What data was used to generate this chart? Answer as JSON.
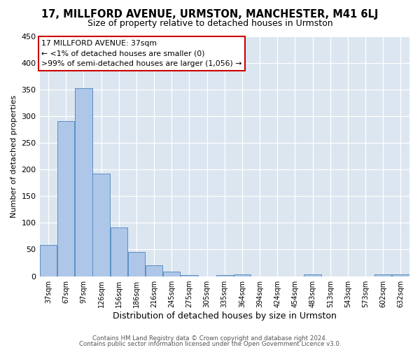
{
  "title": "17, MILLFORD AVENUE, URMSTON, MANCHESTER, M41 6LJ",
  "subtitle": "Size of property relative to detached houses in Urmston",
  "xlabel": "Distribution of detached houses by size in Urmston",
  "ylabel": "Number of detached properties",
  "footer_lines": [
    "Contains HM Land Registry data © Crown copyright and database right 2024.",
    "Contains public sector information licensed under the Open Government Licence v3.0."
  ],
  "bin_labels": [
    "37sqm",
    "67sqm",
    "97sqm",
    "126sqm",
    "156sqm",
    "186sqm",
    "216sqm",
    "245sqm",
    "275sqm",
    "305sqm",
    "335sqm",
    "364sqm",
    "394sqm",
    "424sqm",
    "454sqm",
    "483sqm",
    "513sqm",
    "543sqm",
    "573sqm",
    "602sqm",
    "632sqm"
  ],
  "bar_values": [
    58,
    290,
    352,
    192,
    91,
    46,
    21,
    9,
    2,
    0,
    2,
    4,
    0,
    0,
    0,
    4,
    0,
    0,
    0,
    3,
    4
  ],
  "bar_color": "#aec6e8",
  "bar_edge_color": "#5a8fc2",
  "annotation_title": "17 MILLFORD AVENUE: 37sqm",
  "annotation_line1": "← <1% of detached houses are smaller (0)",
  "annotation_line2": ">99% of semi-detached houses are larger (1,056) →",
  "annotation_box_facecolor": "#ffffff",
  "annotation_box_edgecolor": "#cc0000",
  "ylim": [
    0,
    450
  ],
  "yticks": [
    0,
    50,
    100,
    150,
    200,
    250,
    300,
    350,
    400,
    450
  ],
  "figure_bg": "#ffffff",
  "plot_bg": "#dce6f0",
  "grid_color": "#ffffff",
  "title_fontsize": 10.5,
  "subtitle_fontsize": 9
}
